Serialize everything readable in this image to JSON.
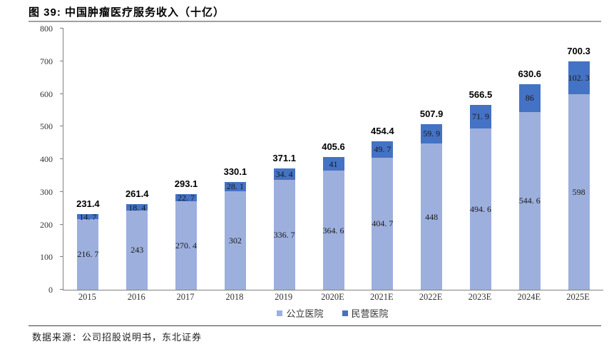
{
  "figure": {
    "title": "图 39: 中国肿瘤医疗服务收入（十亿）",
    "source": "数据来源：公司招股说明书，东北证券"
  },
  "chart_data": {
    "type": "bar",
    "stacked": true,
    "title": "中国肿瘤医疗服务收入（十亿）",
    "categories": [
      "2015",
      "2016",
      "2017",
      "2018",
      "2019",
      "2020E",
      "2021E",
      "2022E",
      "2023E",
      "2024E",
      "2025E"
    ],
    "series": [
      {
        "name": "公立医院",
        "color": "#9DAFDC",
        "values": [
          216.7,
          243,
          270.4,
          302,
          336.7,
          364.6,
          404.7,
          448,
          494.6,
          544.6,
          598
        ],
        "labels": [
          "216. 7",
          "243",
          "270. 4",
          "302",
          "336. 7",
          "364. 6",
          "404. 7",
          "448",
          "494. 6",
          "544. 6",
          "598"
        ]
      },
      {
        "name": "民营医院",
        "color": "#4472C4",
        "values": [
          14.7,
          18.4,
          22.7,
          28.1,
          34.4,
          41,
          49.7,
          59.9,
          71.9,
          86,
          102.3
        ],
        "labels": [
          "14. 7",
          "18. 4",
          "22. 7",
          "28. 1",
          "34. 4",
          "41",
          "49. 7",
          "59. 9",
          "71. 9",
          "86",
          "102. 3"
        ]
      }
    ],
    "totals": {
      "values": [
        231.4,
        261.4,
        293.1,
        330.1,
        371.1,
        405.6,
        454.4,
        507.9,
        566.5,
        630.6,
        700.3
      ],
      "labels": [
        "231.4",
        "261.4",
        "293.1",
        "330.1",
        "371.1",
        "405.6",
        "454.4",
        "507.9",
        "566.5",
        "630.6",
        "700.3"
      ]
    },
    "xlabel": "",
    "ylabel": "",
    "ylim": [
      0,
      800
    ],
    "yticks": [
      0,
      100,
      200,
      300,
      400,
      500,
      600,
      700,
      800
    ],
    "grid": false,
    "legend_position": "bottom"
  }
}
